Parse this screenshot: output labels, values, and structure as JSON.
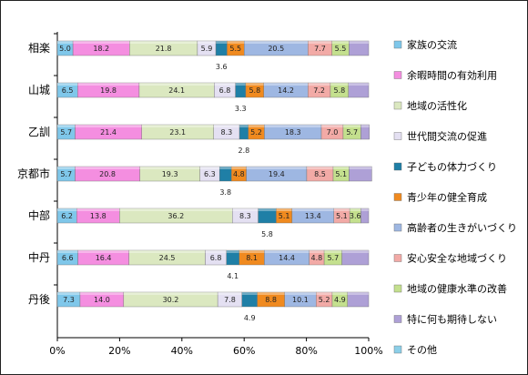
{
  "chart_data": {
    "type": "bar",
    "stacked": "percent",
    "orientation": "horizontal",
    "title": "",
    "xlabel": "",
    "ylabel": "",
    "xlim": [
      0,
      100
    ],
    "x_ticks": [
      "0%",
      "20%",
      "40%",
      "60%",
      "80%",
      "100%"
    ],
    "grid": false,
    "legend_position": "right",
    "categories": [
      "相楽",
      "山城",
      "乙訓",
      "京都市",
      "中部",
      "中丹",
      "丹後"
    ],
    "series": [
      {
        "name": "家族の交流",
        "color": "#7fc7ea",
        "values": [
          5.0,
          6.5,
          5.7,
          5.7,
          6.2,
          6.6,
          7.3
        ]
      },
      {
        "name": "余暇時間の有効利用",
        "color": "#f48ee0",
        "values": [
          18.2,
          19.8,
          21.4,
          20.8,
          13.8,
          16.4,
          14.0
        ]
      },
      {
        "name": "地域の活性化",
        "color": "#dbe8c0",
        "values": [
          21.8,
          24.1,
          23.1,
          19.3,
          36.2,
          24.5,
          30.2
        ]
      },
      {
        "name": "世代間交流の促進",
        "color": "#e4e0f2",
        "values": [
          5.9,
          6.8,
          8.3,
          6.3,
          8.3,
          6.8,
          7.8
        ]
      },
      {
        "name": "子どもの体力づくり",
        "color": "#1f7fa6",
        "values": [
          3.6,
          3.3,
          2.8,
          3.8,
          5.8,
          4.1,
          4.9
        ]
      },
      {
        "name": "青少年の健全育成",
        "color": "#f08a1f",
        "values": [
          5.5,
          5.8,
          5.2,
          4.8,
          5.1,
          8.1,
          8.8
        ]
      },
      {
        "name": "高齢者の生きがいづくり",
        "color": "#9eb7e2",
        "values": [
          20.5,
          14.2,
          18.3,
          19.4,
          13.4,
          14.4,
          10.1
        ]
      },
      {
        "name": "安心安全な地域づくり",
        "color": "#f2aaa6",
        "values": [
          7.7,
          7.2,
          7.0,
          8.5,
          5.1,
          4.8,
          5.2
        ]
      },
      {
        "name": "地域の健康水準の改善",
        "color": "#c4e08e",
        "values": [
          5.5,
          5.8,
          5.7,
          5.1,
          3.6,
          5.7,
          4.9
        ]
      },
      {
        "name": "特に何も期待しない",
        "color": "#aea0d6",
        "values": [
          6.3,
          6.5,
          2.7,
          7.3,
          2.5,
          8.6,
          6.8
        ]
      },
      {
        "name": "その他",
        "color": "#8ccfe8",
        "values": [
          0,
          0,
          0,
          0,
          0,
          0,
          0
        ]
      }
    ]
  }
}
